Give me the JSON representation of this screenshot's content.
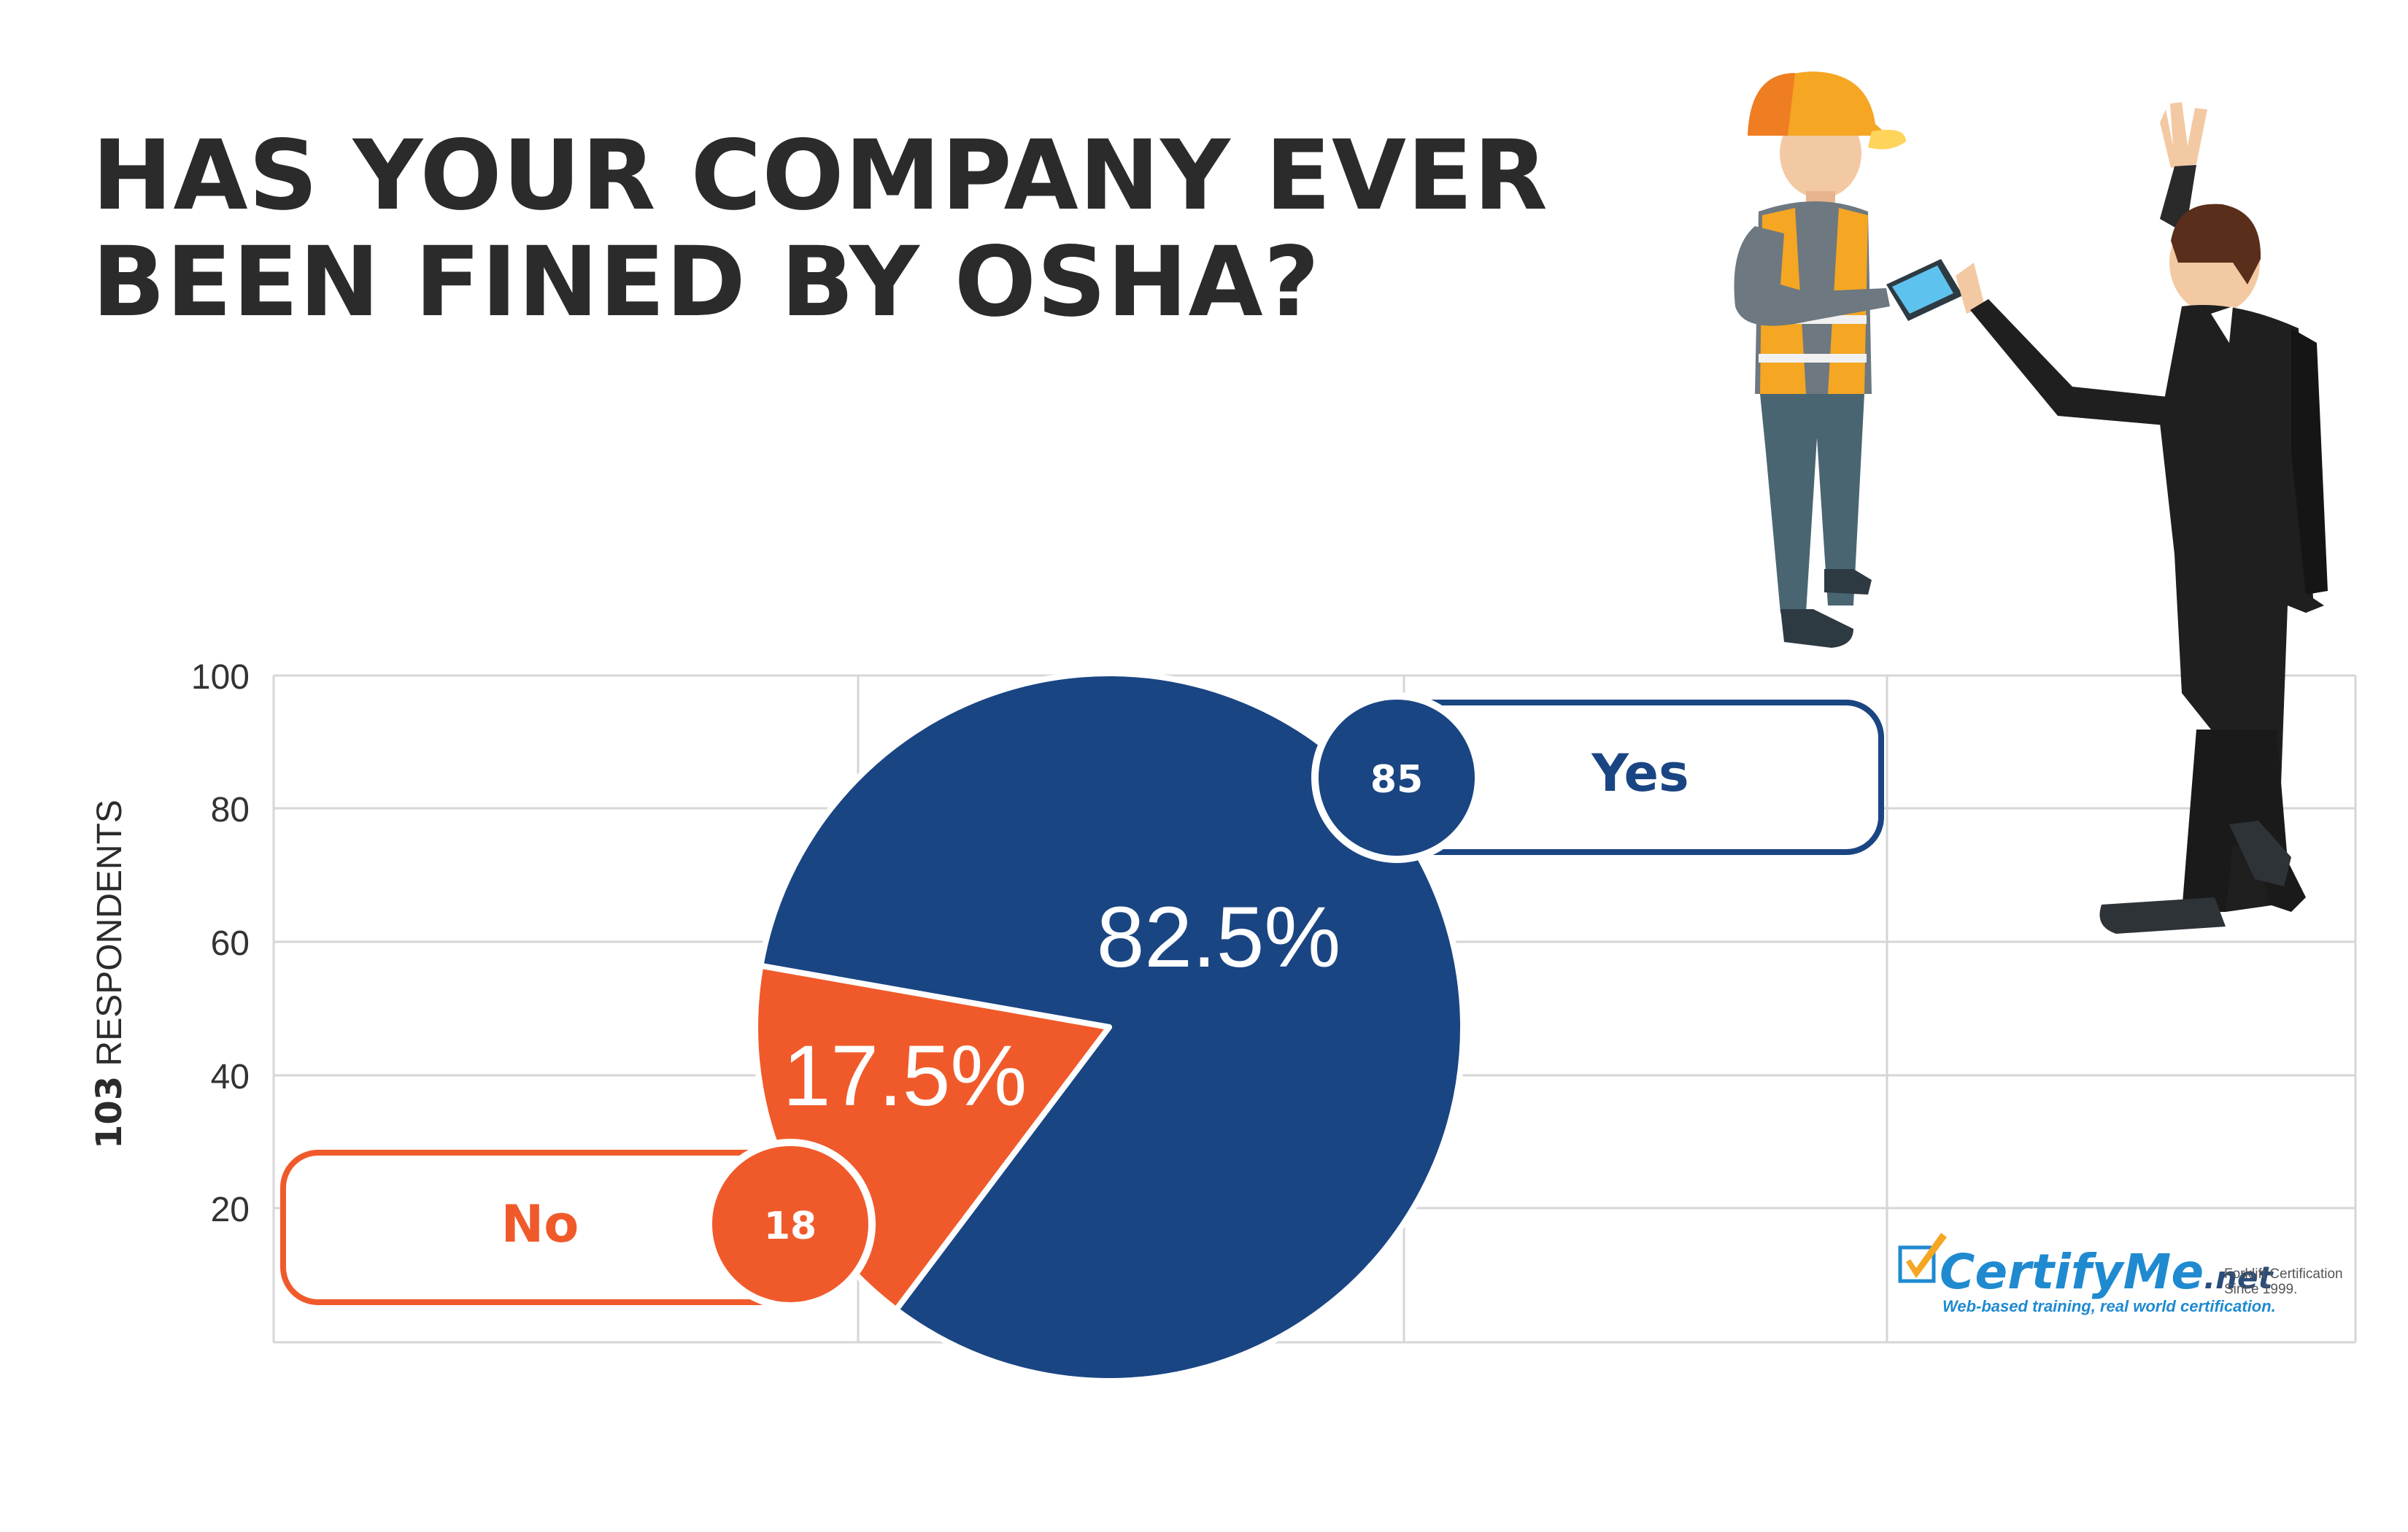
{
  "title_lines": [
    "HAS YOUR COMPANY EVER",
    "BEEN FINED BY OSHA?"
  ],
  "y_axis": {
    "label_number": "103",
    "label_text": " RESPONDENTS",
    "ticks": [
      "20",
      "40",
      "60",
      "80",
      "100"
    ],
    "ylim": [
      0,
      100
    ]
  },
  "chart_data": {
    "type": "pie",
    "title": "HAS YOUR COMPANY EVER BEEN FINED BY OSHA?",
    "total_respondents": 103,
    "slices": [
      {
        "label": "Yes",
        "count": "85",
        "percent_label": "82.5%",
        "value": 82.5,
        "color": "#1a4583"
      },
      {
        "label": "No",
        "count": "18",
        "percent_label": "17.5%",
        "value": 17.5,
        "color": "#f05a2b"
      }
    ]
  },
  "colors": {
    "yes": "#1a4583",
    "no": "#f05a2b",
    "grid": "#d6d6d6",
    "title": "#2b2b2b",
    "brand_blue": "#1f8ad0",
    "brand_orange": "#f5a623"
  },
  "brand": {
    "name": "CertifyMe",
    "suffix": ".net",
    "note_line1": "Forklift Certification",
    "note_line2": "Since 1999.",
    "tagline": "Web-based training, real world certification."
  },
  "illustration": {
    "icons": [
      "safety-worker-icon",
      "businessman-icon"
    ]
  }
}
